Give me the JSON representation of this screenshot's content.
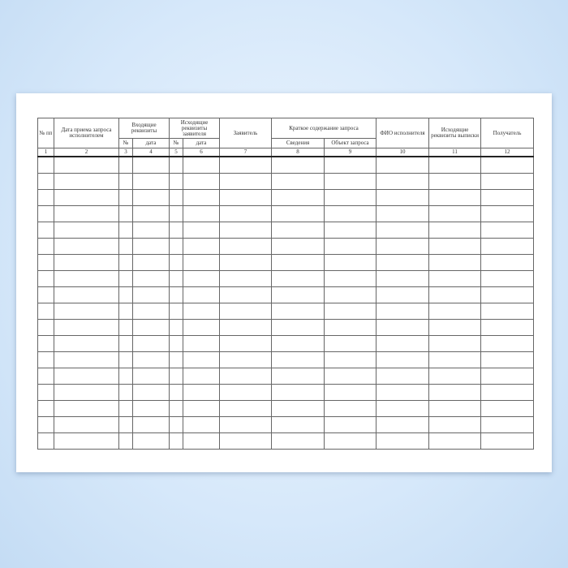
{
  "form": {
    "headers": {
      "no": "№ пп",
      "date_received": "Дата приема запроса исполнителем",
      "incoming": "Входящие реквизиты",
      "incoming_no": "№",
      "incoming_date": "дата",
      "outgoing_applicant": "Исходящие реквизиты заявителя",
      "outgoing_no": "№",
      "outgoing_date": "дата",
      "applicant": "Заявитель",
      "summary": "Краткое содержание запроса",
      "summary_info": "Сведения",
      "summary_object": "Объект запроса",
      "executor": "ФИО исполнителя",
      "outgoing_extract": "Исходящие реквизиты выписки",
      "recipient": "Получатель"
    },
    "column_numbers": [
      "1",
      "2",
      "3",
      "4",
      "5",
      "6",
      "7",
      "8",
      "9",
      "10",
      "11",
      "12"
    ]
  }
}
